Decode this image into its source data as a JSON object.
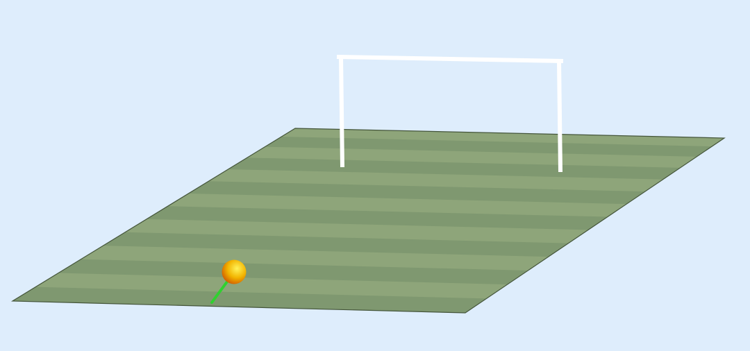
{
  "scene": {
    "background_color": "#deedfc",
    "field": {
      "grass_color_light": "#8ea57a",
      "grass_color_dark": "#7f9870",
      "edge_color": "#44553a",
      "stripe_count": 14
    },
    "goal": {
      "post_color": "#ffffff"
    },
    "ball": {
      "color_highlight": "#fff35a",
      "color_mid": "#f2b400",
      "color_shadow": "#cf5a00"
    },
    "aim_line": {
      "color": "#2fd12f"
    }
  }
}
